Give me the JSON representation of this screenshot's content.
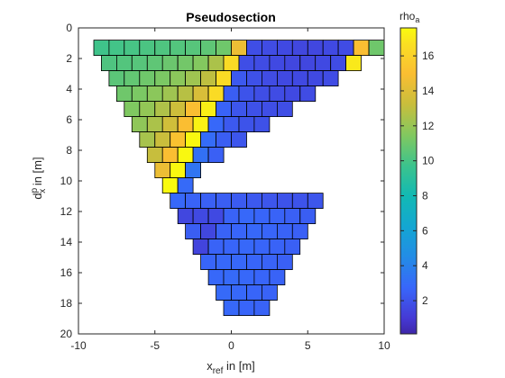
{
  "chart_data": {
    "type": "heatmap",
    "title": "Pseudosection",
    "xlabel_main": "x",
    "xlabel_sub": "ref",
    "xlabel_rest": " in [m]",
    "ylabel_main": "d",
    "ylabel_sup": "p",
    "ylabel_sub": "x",
    "ylabel_rest": " in [m]",
    "colorbar_label_main": "rho",
    "colorbar_label_sub": "a",
    "xlim": [
      -10,
      10
    ],
    "ylim": [
      0,
      20
    ],
    "y_reversed": true,
    "xticks": [
      -10,
      -5,
      0,
      5,
      10
    ],
    "xtick_labels": [
      "-10",
      "-5",
      "0",
      "5",
      "10"
    ],
    "yticks": [
      0,
      2,
      4,
      6,
      8,
      10,
      12,
      14,
      16,
      18,
      20
    ],
    "ytick_labels": [
      "0",
      "2",
      "4",
      "6",
      "8",
      "10",
      "12",
      "14",
      "16",
      "18",
      "20"
    ],
    "colorbar": {
      "range": [
        0.1,
        17.6
      ],
      "ticks": [
        2,
        4,
        6,
        8,
        10,
        12,
        14,
        16
      ],
      "tick_labels": [
        "2",
        "4",
        "6",
        "8",
        "10",
        "12",
        "14",
        "16"
      ],
      "colormap": "parula"
    },
    "grid": false,
    "cell_width_m": 1,
    "cell_height_m": 1,
    "row_depths": [
      0.8,
      1.8,
      2.8,
      3.8,
      4.8,
      5.8,
      6.8,
      7.8,
      8.8,
      9.8,
      10.8,
      11.8,
      12.8,
      13.8,
      14.8,
      15.8,
      16.8,
      17.8
    ],
    "row_x_start": [
      -9,
      -8.5,
      -8,
      -7.5,
      -7,
      -6.5,
      -6,
      -5.5,
      -5,
      -4.5,
      -4,
      -3.5,
      -3,
      -2.5,
      -2,
      -1.5,
      -1,
      -0.5
    ],
    "rows": [
      [
        9.8,
        9.9,
        10,
        10.1,
        10.2,
        10.3,
        10.4,
        10.6,
        11,
        14.5,
        1.8,
        1.7,
        1.6,
        1.5,
        1.5,
        1.6,
        1.7,
        15,
        11
      ],
      [
        10.2,
        10.3,
        10.4,
        10.6,
        10.9,
        11.1,
        11.5,
        12.5,
        16.5,
        1.8,
        1.7,
        1.6,
        1.5,
        1.5,
        1.6,
        1.7,
        17
      ],
      [
        10.5,
        10.7,
        11,
        11.3,
        11.7,
        12.2,
        13,
        16.5,
        2.2,
        1.9,
        1.7,
        1.6,
        1.6,
        1.6,
        1.7
      ],
      [
        11,
        11.3,
        11.7,
        12.2,
        12.8,
        13.8,
        16.5,
        2.4,
        2,
        1.8,
        1.7,
        1.6,
        1.7
      ],
      [
        11.4,
        11.9,
        12.6,
        13.4,
        15,
        17.2,
        2.6,
        2.1,
        1.9,
        1.8,
        1.8
      ],
      [
        11.8,
        12.5,
        13.5,
        15,
        17.3,
        2.8,
        2.2,
        2,
        1.9
      ],
      [
        12.4,
        13.3,
        15.2,
        17.5,
        3,
        2.4,
        2.1
      ],
      [
        13.2,
        15,
        17.5,
        3.2,
        2.5
      ],
      [
        14.5,
        17.5,
        3.4
      ],
      [
        17.6,
        2.9
      ],
      [
        2.8,
        2.6,
        2.5,
        2.4,
        2.3,
        2.2,
        2.1,
        2,
        2,
        2.1
      ],
      [
        1.5,
        1.6,
        1.6,
        2.6,
        2.8,
        2.7,
        2.6,
        2.5,
        2.4
      ],
      [
        2.4,
        1.5,
        2.6,
        2.7,
        2.8,
        2.7,
        2.6,
        2.5
      ],
      [
        1.4,
        2.6,
        2.7,
        2.8,
        2.7,
        2.6,
        2.5
      ],
      [
        2.7,
        2.8,
        2.8,
        2.7,
        2.6,
        2.5
      ],
      [
        2.8,
        2.9,
        2.8,
        2.7,
        2.6
      ],
      [
        2.9,
        2.8,
        2.7,
        2.6
      ],
      [
        2.8,
        2.7,
        2.6
      ]
    ]
  }
}
